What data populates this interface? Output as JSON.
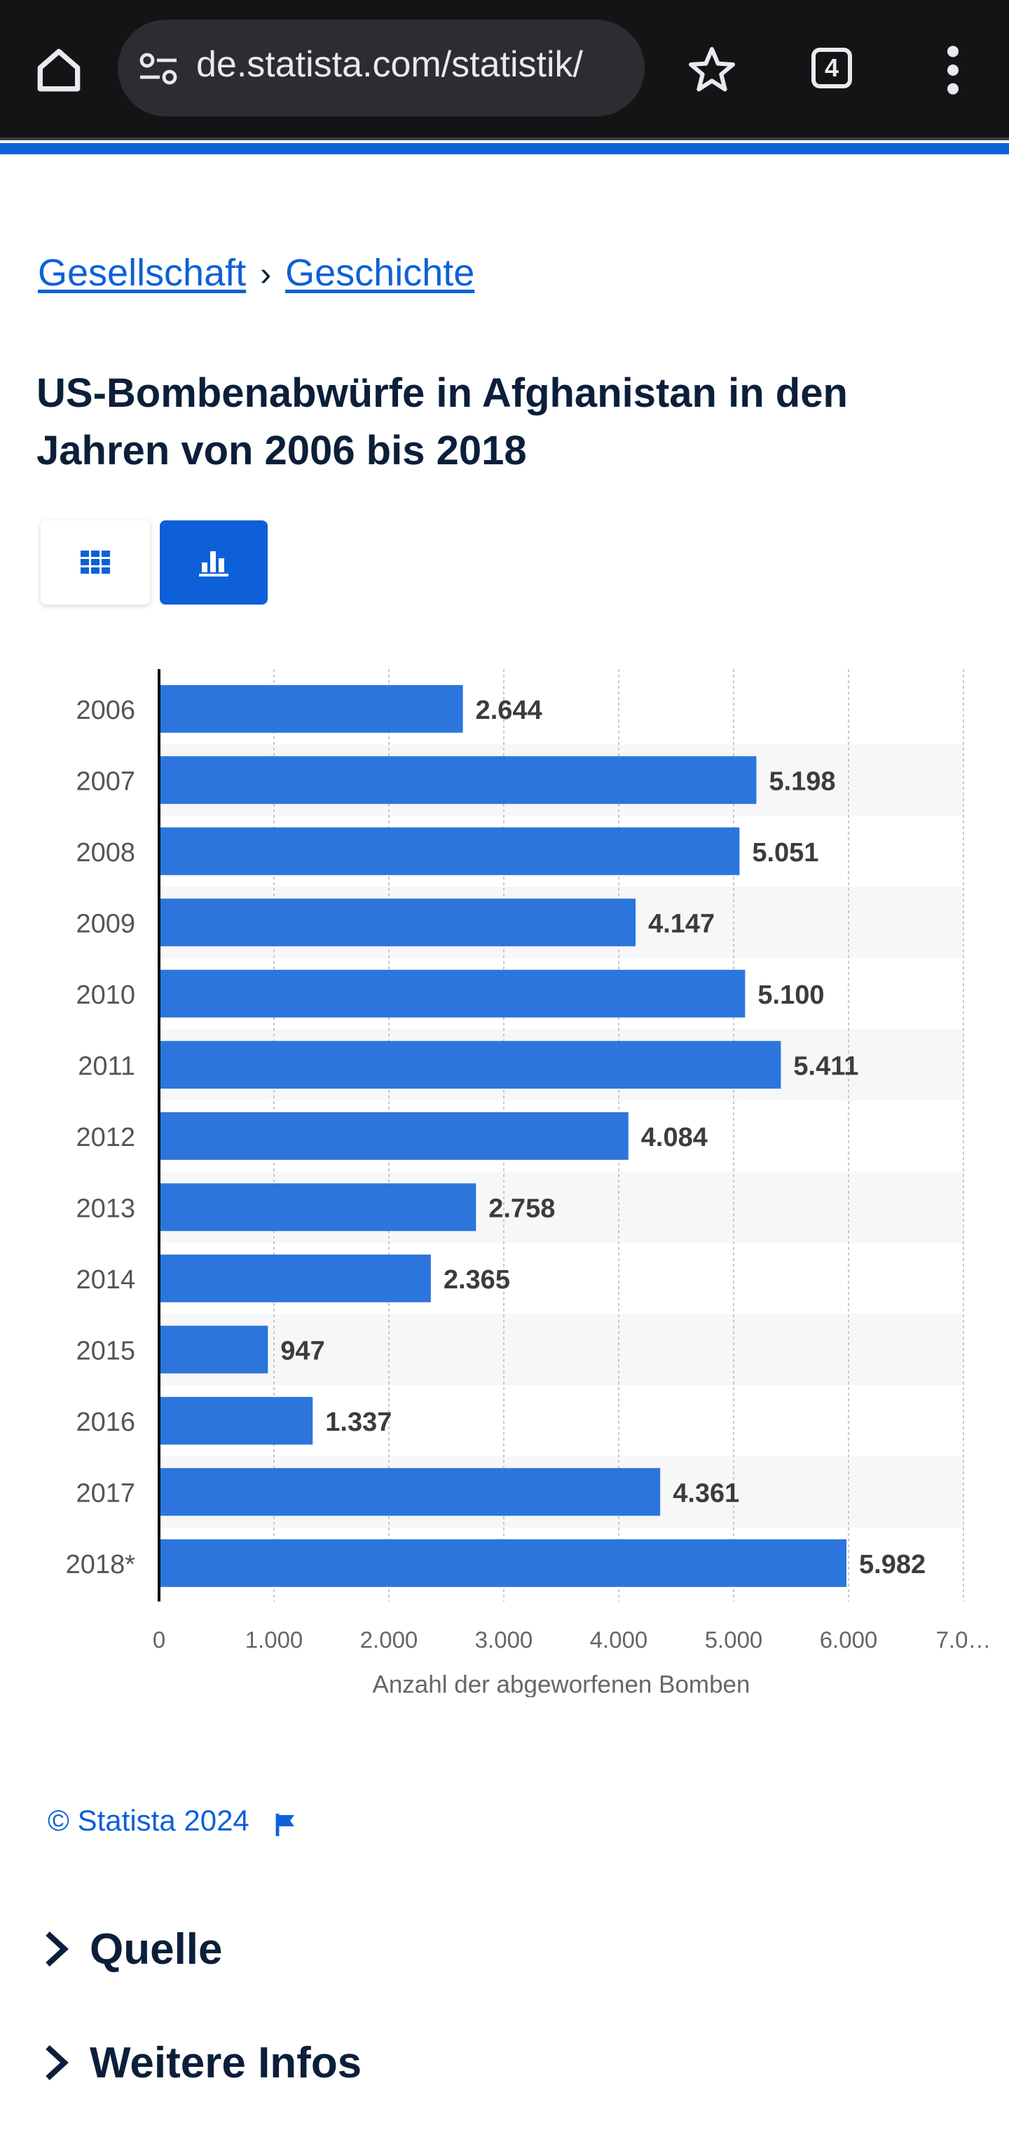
{
  "browser": {
    "url": "de.statista.com/statistik/",
    "tab_count": "4"
  },
  "breadcrumb": {
    "items": [
      "Gesellschaft",
      "Geschichte"
    ],
    "separator": "›"
  },
  "page": {
    "title": "US-Bombenabwürfe in Afghanistan in den Jahren von 2006 bis 2018"
  },
  "view_toggle": {
    "table_icon": "grid-icon",
    "chart_icon": "bar-chart-icon",
    "active": "chart"
  },
  "colors": {
    "accent": "#0d60d8",
    "bar": "#2b75dd",
    "dark_text": "#0b1f3a"
  },
  "chart_data": {
    "type": "bar",
    "orientation": "horizontal",
    "categories": [
      "2006",
      "2007",
      "2008",
      "2009",
      "2010",
      "2011",
      "2012",
      "2013",
      "2014",
      "2015",
      "2016",
      "2017",
      "2018*"
    ],
    "values": [
      2644,
      5198,
      5051,
      4147,
      5100,
      5411,
      4084,
      2758,
      2365,
      947,
      1337,
      4361,
      5982
    ],
    "value_labels": [
      "2.644",
      "5.198",
      "5.051",
      "4.147",
      "5.100",
      "5.411",
      "4.084",
      "2.758",
      "2.365",
      "947",
      "1.337",
      "4.361",
      "5.982"
    ],
    "xlabel": "Anzahl der abgeworfenen Bomben",
    "ylabel": "",
    "xlim": [
      0,
      7000
    ],
    "xticks": [
      0,
      1000,
      2000,
      3000,
      4000,
      5000,
      6000,
      7000
    ],
    "xtick_labels": [
      "0",
      "1.000",
      "2.000",
      "3.000",
      "4.000",
      "5.000",
      "6.000",
      "7.0…"
    ],
    "grid": "vertical dashed",
    "alternating_row_shading": true
  },
  "footer": {
    "copyright": "© Statista 2024",
    "flag_icon": "flag-icon"
  },
  "sections": [
    {
      "label": "Quelle"
    },
    {
      "label": "Weitere Infos"
    }
  ]
}
